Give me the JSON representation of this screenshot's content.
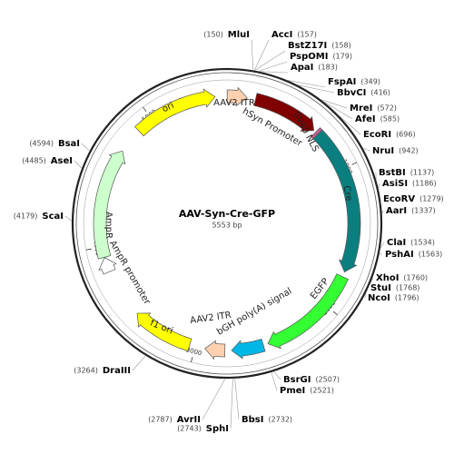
{
  "map": {
    "title": "AAV-Syn-Cre-GFP",
    "length": {
      "value": 5553,
      "label": "5553 bp"
    },
    "ruler": [
      1000,
      2000,
      3000,
      4000,
      5000
    ],
    "features": [
      {
        "label": "AAV2 ITR",
        "start": 1,
        "end": 141,
        "color": "#ffd1b0"
      },
      {
        "label": "hSyn Promoter",
        "start": 200,
        "end": 665,
        "color": "#800000"
      },
      {
        "label": "SV40 NLS",
        "start": 682,
        "end": 703,
        "color": "#c0608c"
      },
      {
        "label": "Cre",
        "start": 704,
        "end": 1735,
        "color": "#0b7f80"
      },
      {
        "label": "EGFP",
        "start": 1770,
        "end": 2487,
        "color": "#33ff33"
      },
      {
        "label": "bGH poly(A) signal",
        "start": 2520,
        "end": 2745,
        "color": "#00b7e6"
      },
      {
        "label": "AAV2 ITR",
        "start": 2791,
        "end": 2931,
        "color": "#ffd1b0"
      },
      {
        "label": "f1 ori",
        "start": 3040,
        "end": 3470,
        "color": "#ffff00"
      },
      {
        "label": "AmpR promoter",
        "start": 3820,
        "end": 3925,
        "color": "#ffffff"
      },
      {
        "label": "AmpR",
        "start": 3926,
        "end": 4700,
        "color": "#ccffcc"
      },
      {
        "label": "ori",
        "start": 4880,
        "end": 5470,
        "color": "#ffff00"
      }
    ],
    "sites": [
      {
        "name": "MluI",
        "position": {
          "value": 150,
          "label": "(150)"
        }
      },
      {
        "name": "AccI",
        "position": {
          "value": 157,
          "label": "(157)"
        }
      },
      {
        "name": "BstZ17I",
        "position": {
          "value": 158,
          "label": "(158)"
        }
      },
      {
        "name": "PspOMI",
        "position": {
          "value": 179,
          "label": "(179)"
        }
      },
      {
        "name": "ApaI",
        "position": {
          "value": 183,
          "label": "(183)"
        }
      },
      {
        "name": "FspAI",
        "position": {
          "value": 349,
          "label": "(349)"
        }
      },
      {
        "name": "BbvCI",
        "position": {
          "value": 416,
          "label": "(416)"
        }
      },
      {
        "name": "MreI",
        "position": {
          "value": 572,
          "label": "(572)"
        }
      },
      {
        "name": "AfeI",
        "position": {
          "value": 585,
          "label": "(585)"
        }
      },
      {
        "name": "EcoRI",
        "position": {
          "value": 696,
          "label": "(696)"
        }
      },
      {
        "name": "NruI",
        "position": {
          "value": 942,
          "label": "(942)"
        }
      },
      {
        "name": "BstBI",
        "position": {
          "value": 1137,
          "label": "(1137)"
        }
      },
      {
        "name": "AsiSI",
        "position": {
          "value": 1186,
          "label": "(1186)"
        }
      },
      {
        "name": "EcoRV",
        "position": {
          "value": 1279,
          "label": "(1279)"
        }
      },
      {
        "name": "AarI",
        "position": {
          "value": 1337,
          "label": "(1337)"
        }
      },
      {
        "name": "ClaI",
        "position": {
          "value": 1534,
          "label": "(1534)"
        }
      },
      {
        "name": "PshAI",
        "position": {
          "value": 1563,
          "label": "(1563)"
        }
      },
      {
        "name": "XhoI",
        "position": {
          "value": 1760,
          "label": "(1760)"
        }
      },
      {
        "name": "StuI",
        "position": {
          "value": 1768,
          "label": "(1768)"
        }
      },
      {
        "name": "NcoI",
        "position": {
          "value": 1796,
          "label": "(1796)"
        }
      },
      {
        "name": "BsrGI",
        "position": {
          "value": 2507,
          "label": "(2507)"
        }
      },
      {
        "name": "PmeI",
        "position": {
          "value": 2521,
          "label": "(2521)"
        }
      },
      {
        "name": "BbsI",
        "position": {
          "value": 2732,
          "label": "(2732)"
        }
      },
      {
        "name": "SphI",
        "position": {
          "value": 2743,
          "label": "(2743)"
        }
      },
      {
        "name": "AvrII",
        "position": {
          "value": 2787,
          "label": "(2787)"
        }
      },
      {
        "name": "DraIII",
        "position": {
          "value": 3264,
          "label": "(3264)"
        }
      },
      {
        "name": "ScaI",
        "position": {
          "value": 4179,
          "label": "(4179)"
        }
      },
      {
        "name": "AseI",
        "position": {
          "value": 4485,
          "label": "(4485)"
        }
      },
      {
        "name": "BsaI",
        "position": {
          "value": 4594,
          "label": "(4594)"
        }
      }
    ]
  }
}
